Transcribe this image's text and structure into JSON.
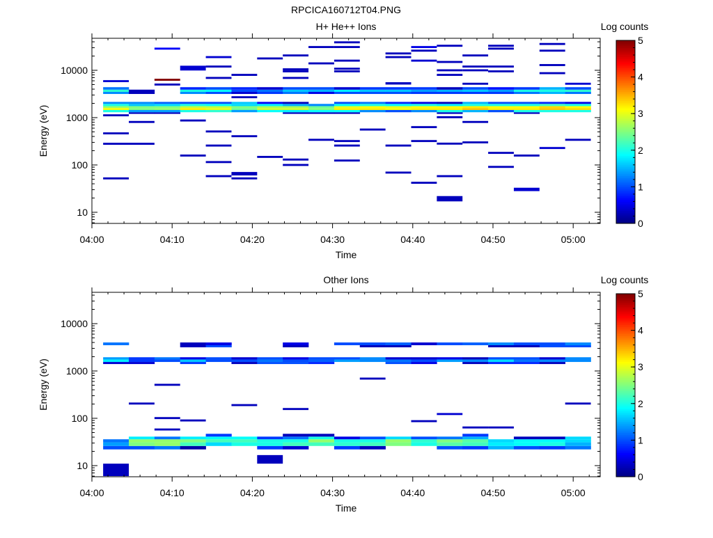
{
  "title": "RPCICA160712T04.PNG",
  "chart_data": [
    {
      "type": "heatmap",
      "title": "H+ He++ Ions",
      "xlabel": "Time",
      "ylabel": "Energy (eV)",
      "x_ticks": [
        {
          "min": 0,
          "label": "04:00"
        },
        {
          "min": 10,
          "label": "04:10"
        },
        {
          "min": 20,
          "label": "04:20"
        },
        {
          "min": 30,
          "label": "04:30"
        },
        {
          "min": 40,
          "label": "04:40"
        },
        {
          "min": 50,
          "label": "04:50"
        },
        {
          "min": 60,
          "label": "05:00"
        }
      ],
      "xlim_min": [
        0,
        63.4
      ],
      "y_scale": "log",
      "ylim": [
        5.8,
        47000
      ],
      "y_ticks": [
        {
          "v": 10,
          "label": "10"
        },
        {
          "v": 100,
          "label": "100"
        },
        {
          "v": 1000,
          "label": "1000"
        },
        {
          "v": 10000,
          "label": "10000"
        }
      ],
      "colorbar": {
        "label": "Log counts",
        "range": [
          0,
          5
        ],
        "ticks": [
          "0",
          "1",
          "2",
          "3",
          "4",
          "5"
        ],
        "colormap": "jet"
      },
      "time_bins": {
        "start_min": 1.4,
        "width_min": 3.2,
        "count": 19
      },
      "bands": [
        {
          "edges": [
            1200,
            1300,
            1450,
            1600,
            1750,
            1950,
            2150
          ],
          "values": [
            [
              null,
              2.0,
              3.1,
              2.6,
              2.0,
              1.3
            ],
            [
              0.3,
              1.4,
              2.5,
              2.5,
              1.6,
              1.3
            ],
            [
              0.3,
              1.4,
              2.6,
              2.5,
              1.7,
              1.1
            ],
            [
              null,
              2.0,
              3.2,
              2.8,
              2.0,
              1.0
            ],
            [
              null,
              2.1,
              3.0,
              2.8,
              1.9,
              1.0
            ],
            [
              null,
              1.4,
              2.4,
              2.5,
              1.7,
              1.6
            ],
            [
              null,
              1.9,
              2.9,
              2.7,
              1.8,
              0.6
            ],
            [
              0.3,
              1.8,
              2.9,
              2.7,
              1.5,
              0.3
            ],
            [
              0.3,
              1.9,
              2.5,
              2.4,
              1.3,
              null
            ],
            [
              0.3,
              1.9,
              3.2,
              3.0,
              1.9,
              1.0
            ],
            [
              null,
              1.3,
              3.2,
              3.1,
              2.0,
              1.2
            ],
            [
              null,
              1.0,
              3.1,
              3.0,
              1.9,
              0.8
            ],
            [
              null,
              1.3,
              3.2,
              3.1,
              2.0,
              0.5
            ],
            [
              0.3,
              2.0,
              3.2,
              3.1,
              1.8,
              0.3
            ],
            [
              null,
              1.5,
              3.4,
              3.2,
              2.0,
              1.5
            ],
            [
              null,
              1.0,
              3.2,
              3.1,
              2.0,
              1.0
            ],
            [
              0.3,
              2.0,
              3.2,
              3.1,
              2.0,
              1.0
            ],
            [
              null,
              2.0,
              3.4,
              3.3,
              2.2,
              0.8
            ],
            [
              null,
              2.0,
              3.3,
              3.1,
              2.0,
              0.5
            ]
          ]
        },
        {
          "edges": [
            3160,
            3500,
            3900,
            4400
          ],
          "values": [
            [
              1.3,
              2.1,
              1.2
            ],
            [
              0.3,
              0.3,
              null
            ],
            [
              null,
              null,
              null
            ],
            [
              1.3,
              2.0,
              0.8
            ],
            [
              1.0,
              1.9,
              1.0
            ],
            [
              0.4,
              1.0,
              0.8
            ],
            [
              0.9,
              1.2,
              0.4
            ],
            [
              1.2,
              1.6,
              1.0
            ],
            [
              0.5,
              1.5,
              1.0
            ],
            [
              1.0,
              1.8,
              0.4
            ],
            [
              1.0,
              1.6,
              0.9
            ],
            [
              1.0,
              1.6,
              0.9
            ],
            [
              0.9,
              1.4,
              0.9
            ],
            [
              0.9,
              1.5,
              0.3
            ],
            [
              0.9,
              1.6,
              1.0
            ],
            [
              0.9,
              1.4,
              0.7
            ],
            [
              1.2,
              2.0,
              0.9
            ],
            [
              1.5,
              2.0,
              1.5
            ],
            [
              1.2,
              2.1,
              1.0
            ]
          ]
        }
      ],
      "lines": [
        [
          0,
          5900,
          0.4
        ],
        [
          0,
          1120,
          0.3
        ],
        [
          0,
          465,
          0.3
        ],
        [
          0,
          280,
          0.3
        ],
        [
          0,
          52,
          0.3
        ],
        [
          1,
          810,
          0.3
        ],
        [
          1,
          280,
          0.3
        ],
        [
          2,
          28700,
          0.6
        ],
        [
          2,
          6300,
          5600,
          7600,
          0.3
        ],
        [
          2,
          5000,
          0.3
        ],
        [
          3,
          9900,
          12500,
          0.4
        ],
        [
          3,
          870,
          0.3
        ],
        [
          3,
          158,
          0.3
        ],
        [
          4,
          19000,
          0.4
        ],
        [
          4,
          12000,
          0.3
        ],
        [
          4,
          6900,
          0.3
        ],
        [
          4,
          510,
          0.3
        ],
        [
          4,
          257,
          0.3
        ],
        [
          4,
          115,
          0.3
        ],
        [
          4,
          58,
          0.3
        ],
        [
          5,
          8000,
          0.3
        ],
        [
          5,
          2700,
          0.3
        ],
        [
          5,
          405,
          0.3
        ],
        [
          5,
          60,
          71,
          0.3
        ],
        [
          5,
          52,
          0.3
        ],
        [
          6,
          17800,
          0.3
        ],
        [
          6,
          148,
          0.3
        ],
        [
          7,
          20600,
          0.3
        ],
        [
          7,
          10500,
          0.3
        ],
        [
          7,
          9500,
          0.3
        ],
        [
          7,
          6900,
          0.3
        ],
        [
          7,
          130,
          0.3
        ],
        [
          7,
          100,
          0.3
        ],
        [
          8,
          31000,
          0.3
        ],
        [
          8,
          14000,
          0.3
        ],
        [
          8,
          340,
          0.3
        ],
        [
          9,
          39000,
          0.3
        ],
        [
          9,
          31000,
          0.3
        ],
        [
          9,
          16000,
          0.3
        ],
        [
          9,
          10800,
          0.3
        ],
        [
          9,
          9500,
          0.3
        ],
        [
          9,
          320,
          0.3
        ],
        [
          9,
          257,
          0.3
        ],
        [
          9,
          124,
          0.3
        ],
        [
          10,
          560,
          0.3
        ],
        [
          11,
          22700,
          0.3
        ],
        [
          11,
          19000,
          0.3
        ],
        [
          11,
          5000,
          5600,
          0.3
        ],
        [
          11,
          257,
          0.3
        ],
        [
          11,
          69,
          0.3
        ],
        [
          12,
          31000,
          0.5
        ],
        [
          12,
          26000,
          0.3
        ],
        [
          12,
          16000,
          0.4
        ],
        [
          12,
          630,
          0.3
        ],
        [
          12,
          320,
          0.3
        ],
        [
          12,
          42,
          0.3
        ],
        [
          13,
          33000,
          0.3
        ],
        [
          13,
          15000,
          0.3
        ],
        [
          13,
          10000,
          0.3
        ],
        [
          13,
          8000,
          0.3
        ],
        [
          13,
          1020,
          0.3
        ],
        [
          13,
          282,
          0.3
        ],
        [
          13,
          58,
          0.3
        ],
        [
          13,
          17,
          22,
          0.3
        ],
        [
          14,
          20600,
          0.3
        ],
        [
          14,
          12000,
          0.3
        ],
        [
          14,
          10000,
          0.3
        ],
        [
          14,
          5200,
          0.3
        ],
        [
          14,
          810,
          0.3
        ],
        [
          14,
          300,
          0.3
        ],
        [
          15,
          33000,
          0.3
        ],
        [
          15,
          28700,
          0.3
        ],
        [
          15,
          12000,
          0.3
        ],
        [
          15,
          9500,
          0.3
        ],
        [
          15,
          180,
          0.3
        ],
        [
          15,
          91,
          0.3
        ],
        [
          16,
          158,
          0.3
        ],
        [
          16,
          28,
          33,
          0.4
        ],
        [
          17,
          36000,
          0.3
        ],
        [
          17,
          26000,
          0.3
        ],
        [
          17,
          12900,
          0.3
        ],
        [
          17,
          8700,
          0.3
        ],
        [
          17,
          228,
          0.4
        ],
        [
          18,
          5200,
          0.4
        ],
        [
          18,
          340,
          0.3
        ]
      ]
    },
    {
      "type": "heatmap",
      "title": "Other Ions",
      "xlabel": "Time",
      "ylabel": "Energy (eV)",
      "x_ticks": [
        {
          "min": 0,
          "label": "04:00"
        },
        {
          "min": 10,
          "label": "04:10"
        },
        {
          "min": 20,
          "label": "04:20"
        },
        {
          "min": 30,
          "label": "04:30"
        },
        {
          "min": 40,
          "label": "04:40"
        },
        {
          "min": 50,
          "label": "04:50"
        },
        {
          "min": 60,
          "label": "05:00"
        }
      ],
      "xlim_min": [
        0,
        63.4
      ],
      "y_scale": "log",
      "ylim": [
        5.8,
        47000
      ],
      "y_ticks": [
        {
          "v": 10,
          "label": "10"
        },
        {
          "v": 100,
          "label": "100"
        },
        {
          "v": 1000,
          "label": "1000"
        },
        {
          "v": 10000,
          "label": "10000"
        }
      ],
      "colorbar": {
        "label": "Log counts",
        "range": [
          0,
          5
        ],
        "ticks": [
          "0",
          "1",
          "2",
          "3",
          "4",
          "5"
        ],
        "colormap": "jet"
      },
      "time_bins": {
        "start_min": 1.4,
        "width_min": 3.2,
        "count": 19
      },
      "bands": [
        {
          "edges": [
            3160,
            3500,
            4000
          ],
          "values": [
            [
              null,
              1.2
            ],
            [
              null,
              null
            ],
            [
              null,
              null
            ],
            [
              0.3,
              0.3
            ],
            [
              1.0,
              0.5
            ],
            [
              null,
              null
            ],
            [
              null,
              null
            ],
            [
              0.3,
              0.5
            ],
            [
              null,
              null
            ],
            [
              null,
              1.0
            ],
            [
              0.3,
              1.0
            ],
            [
              0.3,
              1.1
            ],
            [
              null,
              0.4
            ],
            [
              null,
              1.0
            ],
            [
              null,
              1.1
            ],
            [
              0.3,
              1.3
            ],
            [
              0.3,
              1.0
            ],
            [
              1.0,
              1.0
            ],
            [
              1.0,
              1.3
            ]
          ]
        },
        {
          "edges": [
            1400,
            1550,
            1750,
            1950
          ],
          "values": [
            [
              0.4,
              1.8,
              1.4
            ],
            [
              0.4,
              0.9,
              0.9
            ],
            [
              null,
              1.0,
              1.2
            ],
            [
              0.9,
              1.6,
              0.5
            ],
            [
              null,
              1.0,
              1.0
            ],
            [
              0.3,
              1.0,
              0.4
            ],
            [
              1.0,
              1.2,
              1.0
            ],
            [
              1.0,
              1.0,
              0.5
            ],
            [
              0.8,
              1.1,
              1.0
            ],
            [
              null,
              1.4,
              1.0
            ],
            [
              null,
              1.3,
              1.3
            ],
            [
              1.0,
              1.2,
              0.4
            ],
            [
              0.5,
              1.0,
              0.4
            ],
            [
              null,
              1.4,
              0.5
            ],
            [
              0.3,
              1.3,
              0.3
            ],
            [
              0.8,
              1.7,
              1.0
            ],
            [
              0.8,
              1.2,
              1.0
            ],
            [
              0.3,
              1.3,
              0.4
            ],
            [
              null,
              1.3,
              1.3
            ]
          ]
        },
        {
          "edges": [
            22,
            26,
            31,
            36,
            41,
            47
          ],
          "values": [
            [
              1.0,
              1.4,
              1.2,
              null,
              null
            ],
            [
              1.0,
              2.5,
              2.6,
              1.8,
              null
            ],
            [
              1.2,
              2.6,
              2.6,
              1.2,
              null
            ],
            [
              0.2,
              2.2,
              2.5,
              1.8,
              null
            ],
            [
              null,
              1.7,
              2.2,
              1.9,
              0.9
            ],
            [
              null,
              2.0,
              2.2,
              1.9,
              null
            ],
            [
              0.9,
              2.0,
              2.0,
              0.9,
              null
            ],
            [
              0.4,
              2.2,
              2.0,
              1.2,
              0.3
            ],
            [
              null,
              2.2,
              2.6,
              2.0,
              0.3
            ],
            [
              0.9,
              2.1,
              2.0,
              0.5,
              null
            ],
            [
              0.3,
              2.2,
              2.0,
              1.0,
              null
            ],
            [
              null,
              2.5,
              2.6,
              1.7,
              null
            ],
            [
              null,
              2.0,
              2.1,
              1.0,
              null
            ],
            [
              1.0,
              2.3,
              2.5,
              1.2,
              null
            ],
            [
              0.9,
              2.2,
              2.3,
              1.5,
              0.9
            ],
            [
              1.5,
              1.8,
              1.7,
              null,
              null
            ],
            [
              1.0,
              1.9,
              1.9,
              0.3,
              null
            ],
            [
              0.9,
              2.0,
              1.9,
              0.3,
              null
            ],
            [
              1.2,
              1.5,
              1.7,
              1.7,
              null
            ]
          ]
        }
      ],
      "lines": [
        [
          0,
          6,
          11,
          0.3
        ],
        [
          1,
          205,
          0.3
        ],
        [
          2,
          510,
          0.3
        ],
        [
          2,
          101,
          0.3
        ],
        [
          2,
          58,
          0.3
        ],
        [
          3,
          90,
          0.3
        ],
        [
          5,
          190,
          0.3
        ],
        [
          6,
          11,
          16.7,
          0.3
        ],
        [
          7,
          157,
          0.3
        ],
        [
          10,
          690,
          0.3
        ],
        [
          12,
          87,
          0.3
        ],
        [
          13,
          123,
          0.4
        ],
        [
          14,
          64,
          0.3
        ],
        [
          15,
          64,
          0.3
        ],
        [
          18,
          205,
          0.3
        ]
      ]
    }
  ]
}
